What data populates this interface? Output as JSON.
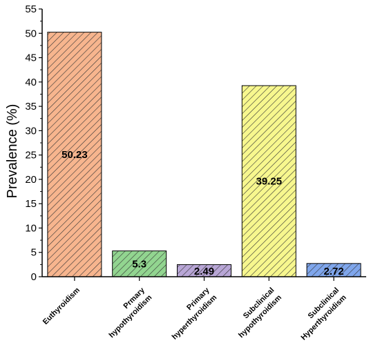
{
  "chart_data": {
    "type": "bar",
    "title": "",
    "xlabel": "",
    "ylabel": "Prevalence (%)",
    "ylim": [
      0,
      55
    ],
    "yticks": [
      0,
      5,
      10,
      15,
      20,
      25,
      30,
      35,
      40,
      45,
      50,
      55
    ],
    "grid": false,
    "legend": "none",
    "categories": [
      [
        "Euthyroidism"
      ],
      [
        "Prmary",
        "hypothyroidism"
      ],
      [
        "Primary",
        "hyperthyroidism"
      ],
      [
        "Subclinical",
        "hypothyroidism"
      ],
      [
        "Subclinical",
        "Hyperthyroidism"
      ]
    ],
    "values": [
      50.23,
      5.3,
      2.49,
      39.25,
      2.72
    ],
    "value_labels": [
      "50.23",
      "5.3",
      "2.49",
      "39.25",
      "2.72"
    ],
    "colors": [
      "#f7b58e",
      "#92d590",
      "#b8a6d6",
      "#f7f78e",
      "#7fa6ec"
    ],
    "bar_pattern": "diagonal-hatch"
  }
}
